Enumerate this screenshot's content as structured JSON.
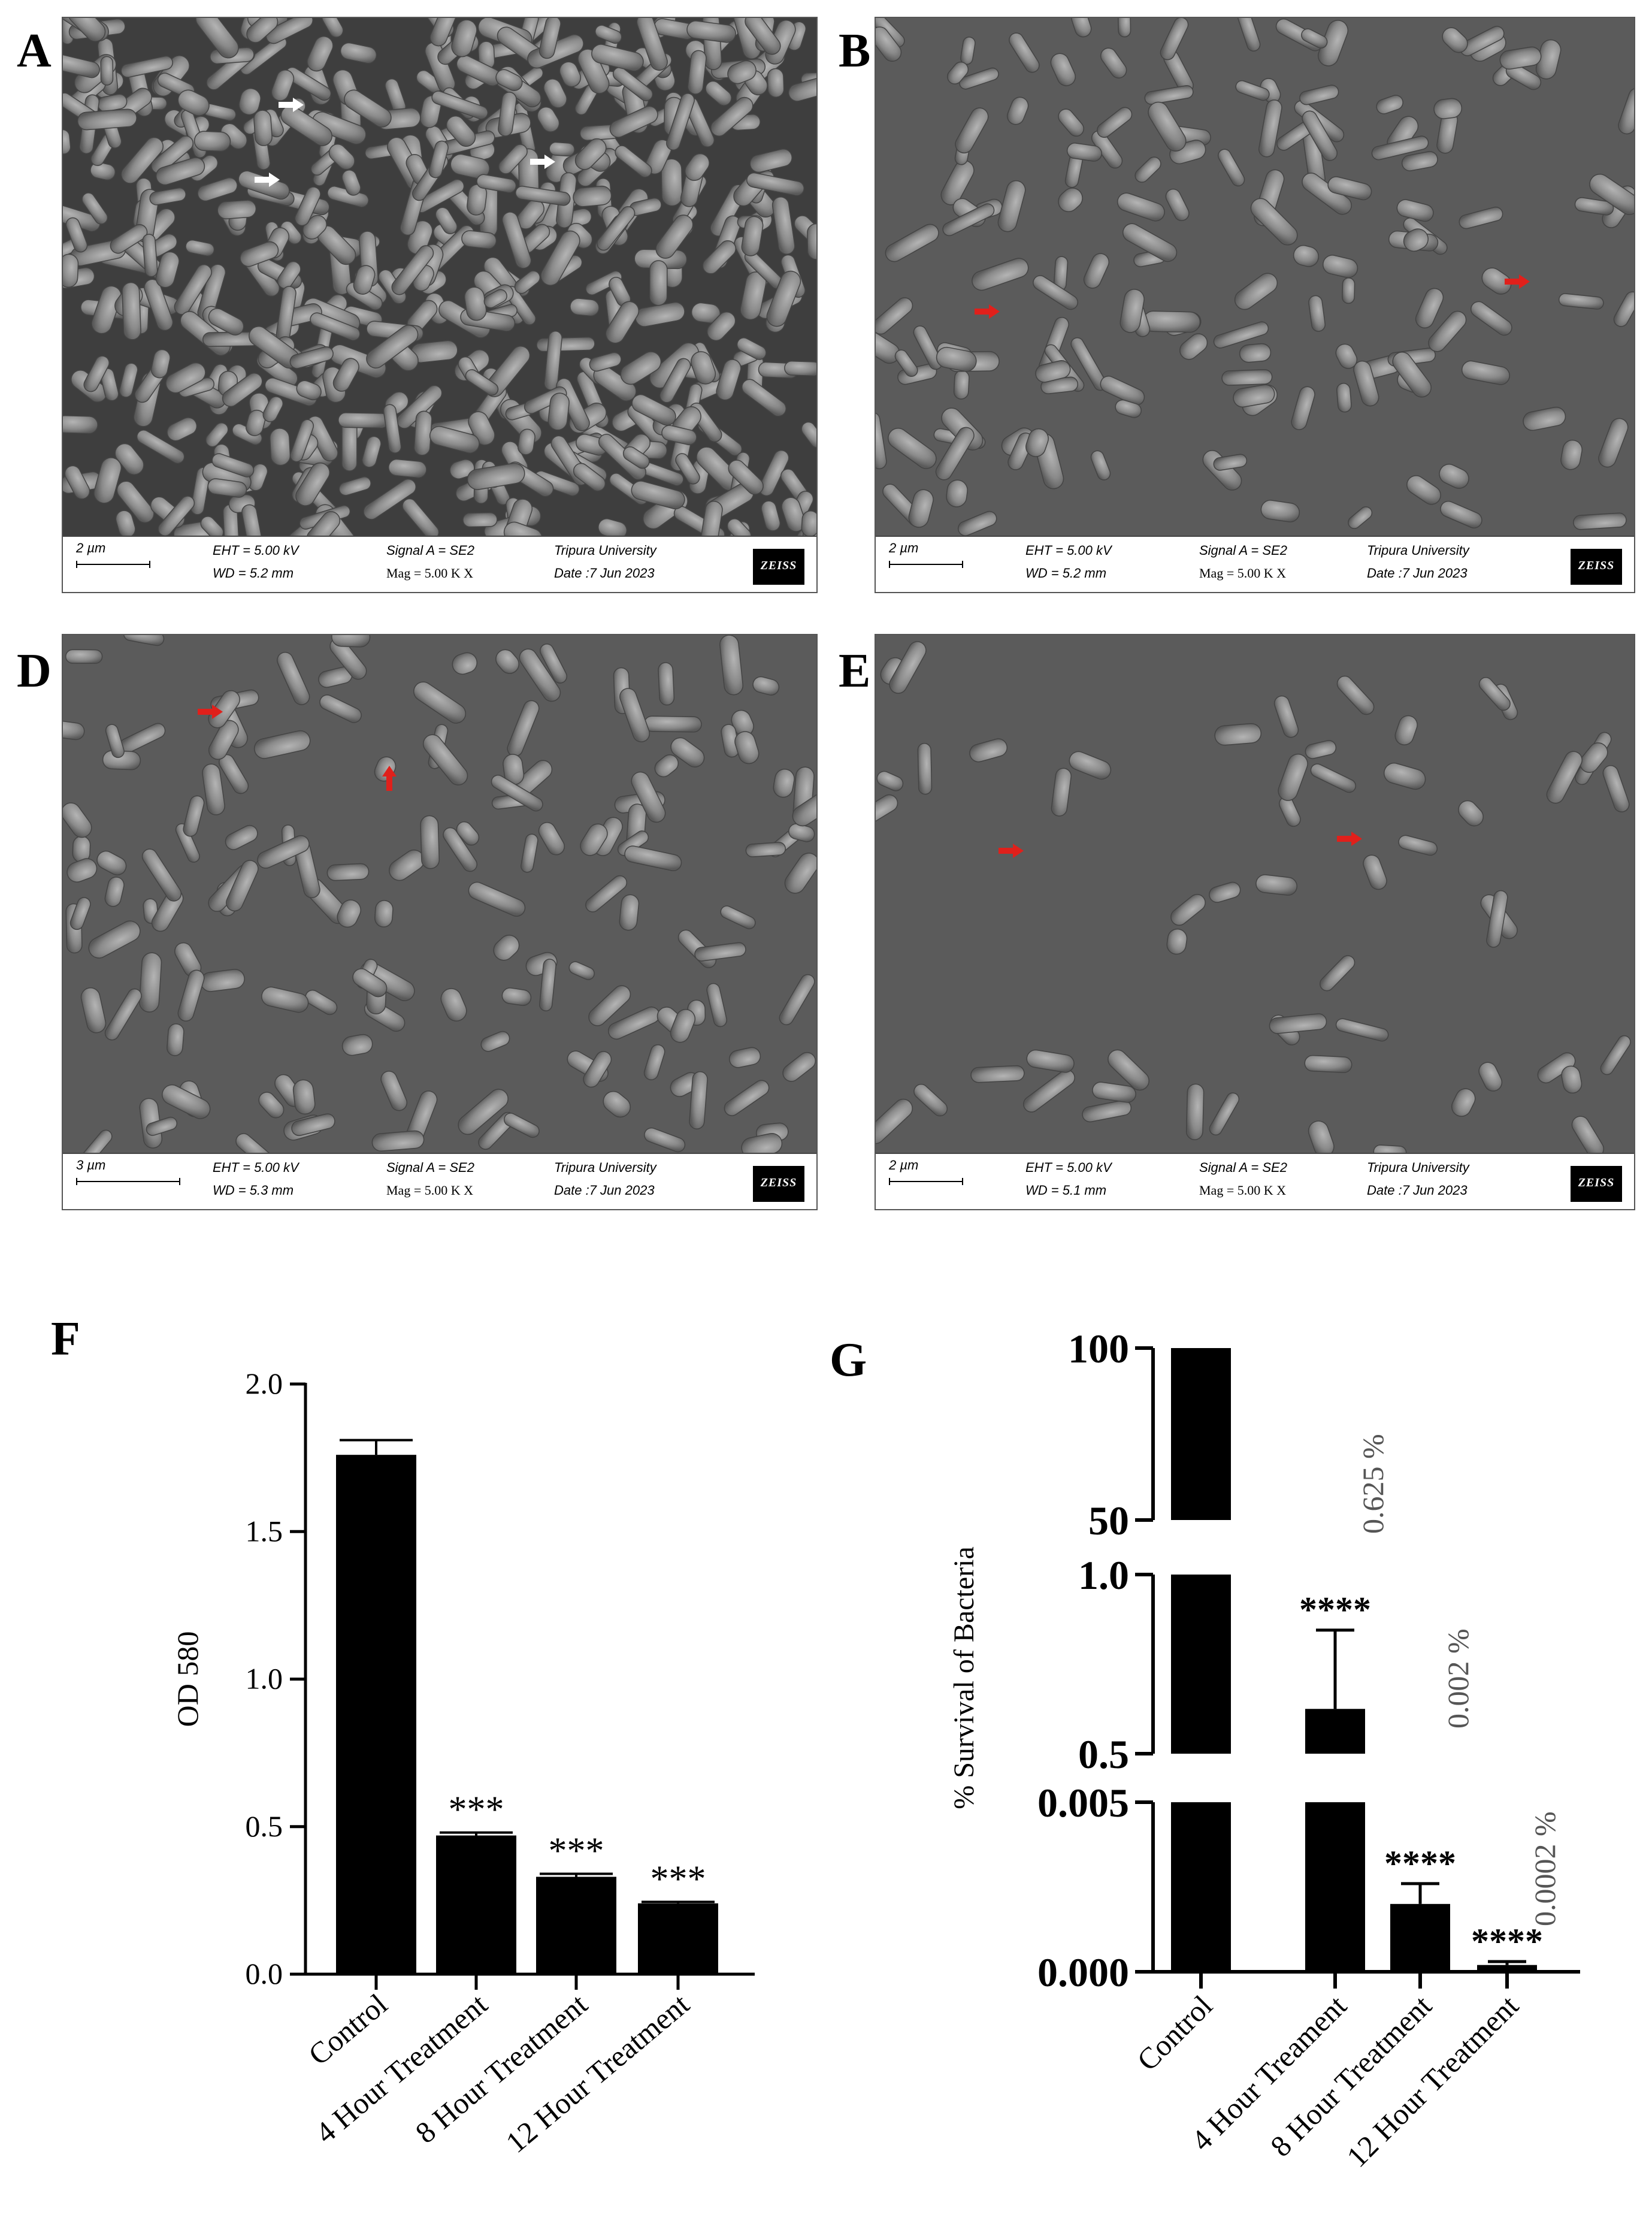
{
  "panel_labels": {
    "A": "A",
    "B": "B",
    "D": "D",
    "E": "E",
    "F": "F",
    "G": "G"
  },
  "sem_panels": [
    {
      "id": "A",
      "scale": "2 µm",
      "eht": "EHT =  5.00 kV",
      "wd": "WD =  5.2 mm",
      "signal": "Signal A = SE2",
      "mag": "Mag =     5.00 K X",
      "uni": "Tripura University",
      "date": "Date :7 Jun 2023",
      "logo": "ZEISS"
    },
    {
      "id": "B",
      "scale": "2 µm",
      "eht": "EHT =  5.00 kV",
      "wd": "WD = 5.2 mm",
      "signal": "Signal A = SE2",
      "mag": "Mag =     5.00 K X",
      "uni": "Tripura University",
      "date": "Date :7 Jun 2023",
      "logo": "ZEISS"
    },
    {
      "id": "D",
      "scale": "3 µm",
      "eht": "EHT =  5.00 kV",
      "wd": "WD =  5.3 mm",
      "signal": "Signal A = SE2",
      "mag": "Mag =     5.00 K X",
      "uni": "Tripura University",
      "date": "Date :7 Jun 2023",
      "logo": "ZEISS"
    },
    {
      "id": "E",
      "scale": "2 µm",
      "eht": "EHT =  5.00 kV",
      "wd": "WD =  5.1 mm",
      "signal": "Signal A = SE2",
      "mag": "Mag =     5.00 K X",
      "uni": "Tripura University",
      "date": "Date :7 Jun 2023",
      "logo": "ZEISS"
    }
  ],
  "colors": {
    "bar": "#000000",
    "sem_bg": "#5e5e5e",
    "white_arrow": "#ffffff",
    "red_arrow": "#e0201b"
  },
  "chart_data": [
    {
      "type": "bar",
      "panel": "F",
      "ylabel": "OD 580",
      "categories": [
        "Control",
        "4 Hour Treatment",
        "8 Hour Treatment",
        "12 Hour Treatment"
      ],
      "values": [
        1.76,
        0.47,
        0.33,
        0.24
      ],
      "errors": [
        0.05,
        0.01,
        0.01,
        0.005
      ],
      "annotations": [
        "",
        "***",
        "***",
        "***"
      ],
      "ylim": [
        0,
        2.0
      ],
      "yticks": [
        "0.0",
        "0.5",
        "1.0",
        "1.5",
        "2.0"
      ]
    },
    {
      "type": "bar",
      "panel": "G",
      "ylabel": "% Survival of Bacteria",
      "categories": [
        "Control",
        "4 Hour Treament",
        "8 Hour Treatment",
        "12 Hour Treatment"
      ],
      "values": [
        100,
        0.625,
        0.002,
        0.0002
      ],
      "errors": [
        0,
        0.22,
        0.0006,
        0.0001
      ],
      "annotations": [
        "",
        "****",
        "****",
        "****"
      ],
      "percent_labels": [
        "",
        "0.625 %",
        "0.002 %",
        "0.0002 %"
      ],
      "axis_segments": [
        {
          "range": [
            50,
            100
          ],
          "ticks": [
            "50",
            "100"
          ]
        },
        {
          "range": [
            0.5,
            1.0
          ],
          "ticks": [
            "0.5",
            "1.0"
          ]
        },
        {
          "range": [
            0.0,
            0.005
          ],
          "ticks": [
            "0.000",
            "0.005"
          ]
        }
      ]
    }
  ]
}
